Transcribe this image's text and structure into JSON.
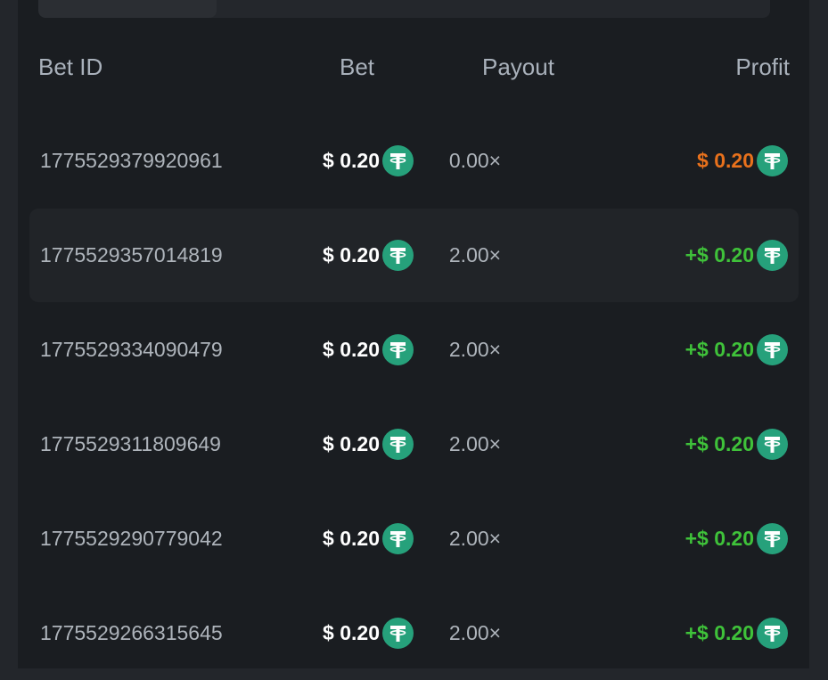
{
  "tabs": [
    {
      "label": ""
    },
    {
      "label": ""
    }
  ],
  "headers": {
    "bet_id": "Bet ID",
    "bet": "Bet",
    "payout": "Payout",
    "profit": "Profit"
  },
  "colors": {
    "loss": "#e8711c",
    "win": "#3fc23a",
    "coin": "#26a17b"
  },
  "coin_icon": "tether-usdt-icon",
  "rows": [
    {
      "id": "1775529379920961",
      "bet": "$ 0.20",
      "payout": "0.00×",
      "profit": "$ 0.20",
      "result": "loss"
    },
    {
      "id": "1775529357014819",
      "bet": "$ 0.20",
      "payout": "2.00×",
      "profit": "+$ 0.20",
      "result": "win"
    },
    {
      "id": "1775529334090479",
      "bet": "$ 0.20",
      "payout": "2.00×",
      "profit": "+$ 0.20",
      "result": "win"
    },
    {
      "id": "1775529311809649",
      "bet": "$ 0.20",
      "payout": "2.00×",
      "profit": "+$ 0.20",
      "result": "win"
    },
    {
      "id": "1775529290779042",
      "bet": "$ 0.20",
      "payout": "2.00×",
      "profit": "+$ 0.20",
      "result": "win"
    },
    {
      "id": "1775529266315645",
      "bet": "$ 0.20",
      "payout": "2.00×",
      "profit": "+$ 0.20",
      "result": "win"
    }
  ]
}
